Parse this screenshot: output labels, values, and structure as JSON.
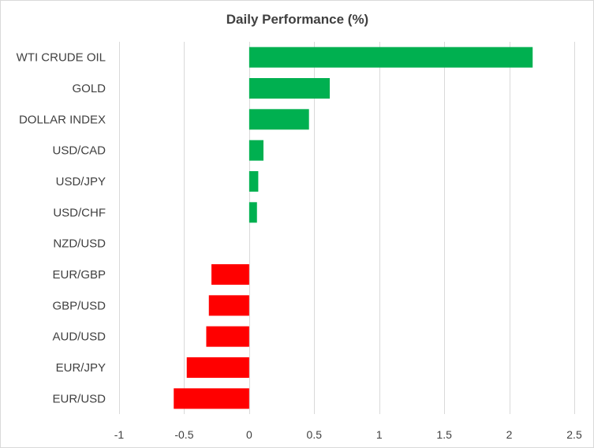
{
  "colors": {
    "positive": "#00b050",
    "negative": "#ff0000",
    "grid": "#d9d9d9",
    "text": "#404040"
  },
  "chart_data": {
    "type": "bar",
    "orientation": "horizontal",
    "title": "Daily Performance  (%)",
    "xlabel": "",
    "ylabel": "",
    "categories": [
      "WTI CRUDE OIL",
      "GOLD",
      "DOLLAR INDEX",
      "USD/CAD",
      "USD/JPY",
      "USD/CHF",
      "NZD/USD",
      "EUR/GBP",
      "GBP/USD",
      "AUD/USD",
      "EUR/JPY",
      "EUR/USD"
    ],
    "values": [
      2.18,
      0.62,
      0.46,
      0.11,
      0.07,
      0.06,
      0.0,
      -0.29,
      -0.31,
      -0.33,
      -0.48,
      -0.58
    ],
    "xlim": [
      -1,
      2.5
    ],
    "xticks": [
      -1,
      -0.5,
      0,
      0.5,
      1,
      1.5,
      2,
      2.5
    ],
    "xtick_labels": [
      "-1",
      "-0.5",
      "0",
      "0.5",
      "1",
      "1.5",
      "2",
      "2.5"
    ],
    "grid": "vertical",
    "legend": "none"
  }
}
